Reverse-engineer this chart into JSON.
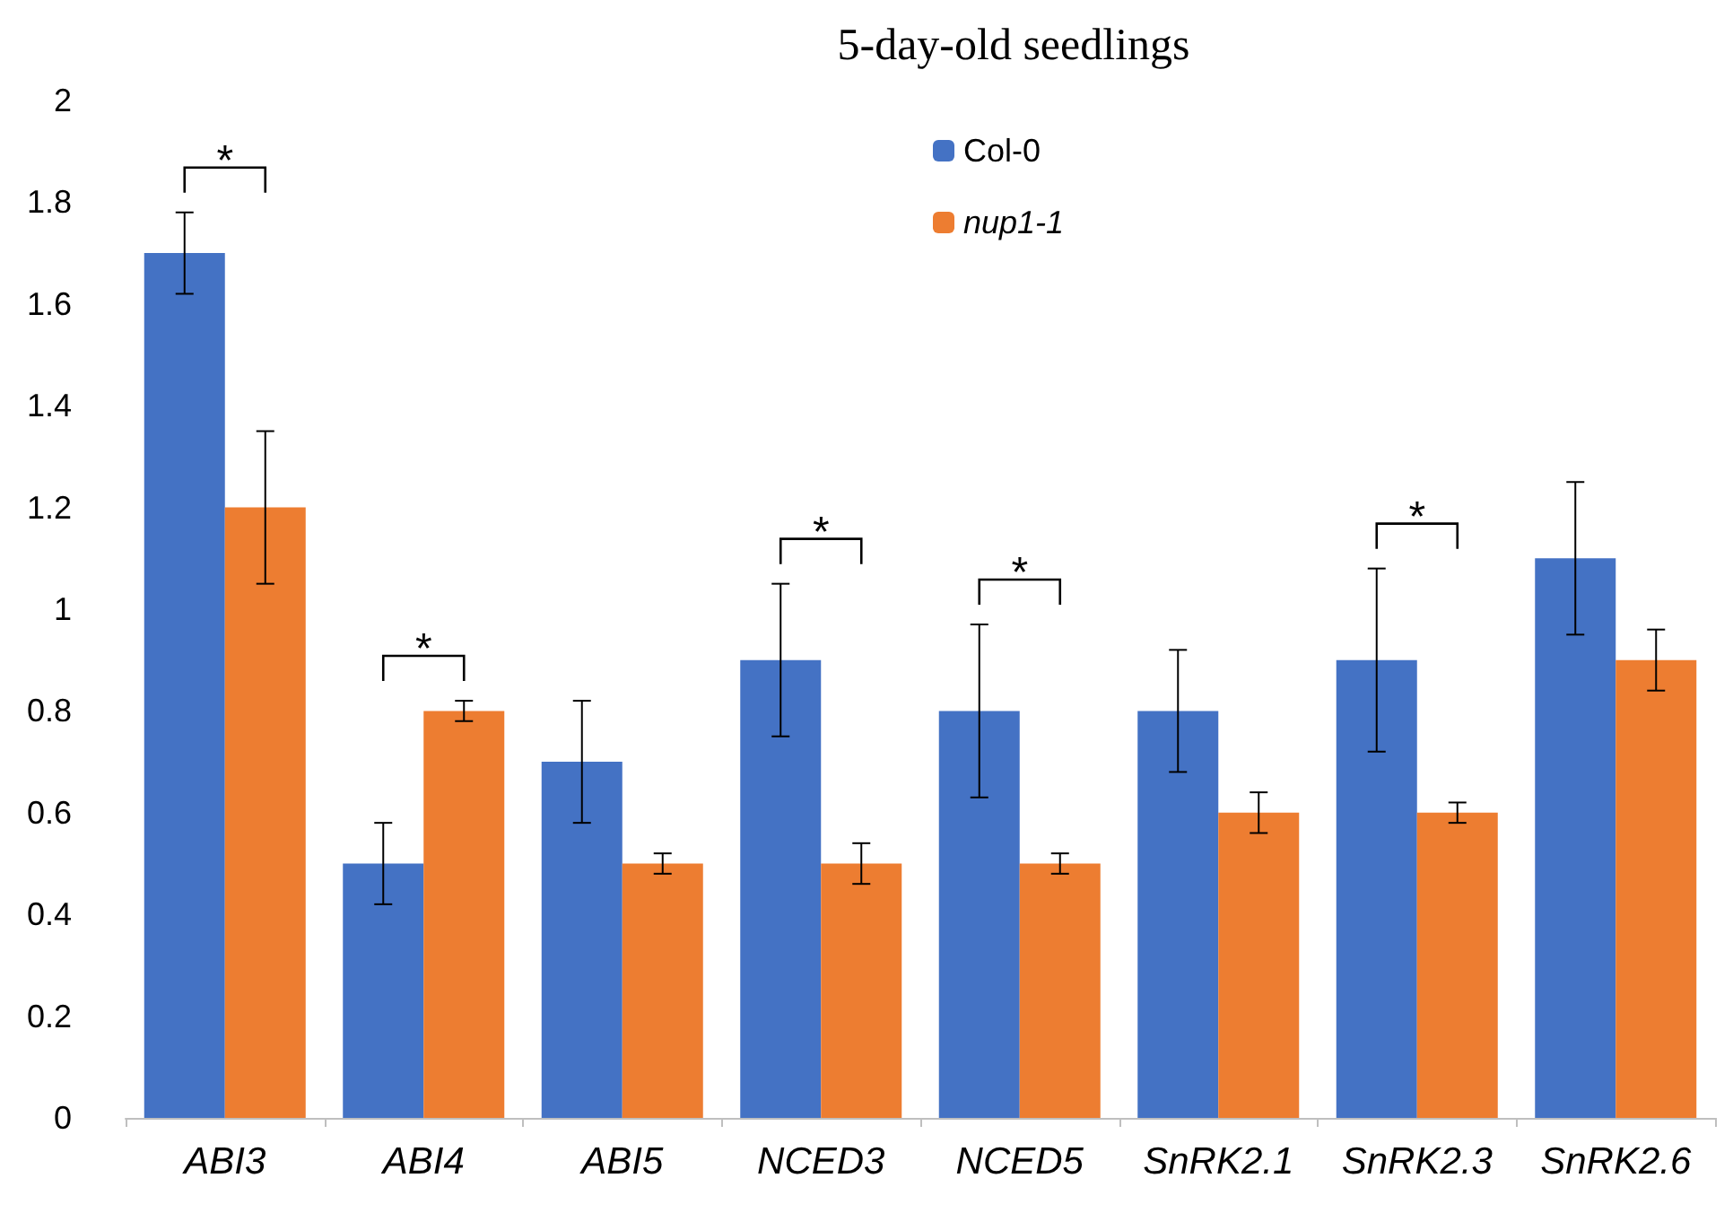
{
  "chart_data": {
    "type": "bar",
    "title": "5-day-old seedlings",
    "categories": [
      "ABI3",
      "ABI4",
      "ABI5",
      "NCED3",
      "NCED5",
      "SnRK2.1",
      "SnRK2.3",
      "SnRK2.6"
    ],
    "series": [
      {
        "name": "Col-0",
        "color": "#4472c4",
        "values": [
          1.7,
          0.5,
          0.7,
          0.9,
          0.8,
          0.8,
          0.9,
          1.1
        ],
        "errors": [
          0.08,
          0.08,
          0.12,
          0.15,
          0.17,
          0.12,
          0.18,
          0.15
        ]
      },
      {
        "name": "nup1-1",
        "color": "#ed7d31",
        "values": [
          1.2,
          0.8,
          0.5,
          0.5,
          0.5,
          0.6,
          0.6,
          0.9
        ],
        "errors": [
          0.15,
          0.02,
          0.02,
          0.04,
          0.02,
          0.04,
          0.02,
          0.06
        ]
      }
    ],
    "ylim": [
      0,
      2
    ],
    "yticks": [
      0,
      0.2,
      0.4,
      0.6,
      0.8,
      1,
      1.2,
      1.4,
      1.6,
      1.8,
      2
    ],
    "grid": false,
    "legend": "top",
    "annotations": [
      {
        "text": "*",
        "x": "ABI3",
        "y": 1.7
      },
      {
        "text": "*",
        "x": "ABI4",
        "y": 0.8
      },
      {
        "text": "*",
        "x": "NCED3",
        "y": 0.9
      },
      {
        "text": "*",
        "x": "NCED5",
        "y": 0.8
      },
      {
        "text": "*",
        "x": "SnRK2.3",
        "y": 0.9
      }
    ]
  }
}
